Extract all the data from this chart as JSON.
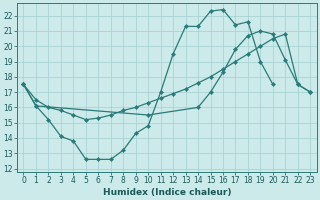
{
  "xlabel": "Humidex (Indice chaleur)",
  "bg_color": "#cceaea",
  "grid_color": "#aad4d4",
  "line_color": "#2a7a7a",
  "ylim": [
    11.8,
    22.8
  ],
  "xlim": [
    -0.5,
    23.5
  ],
  "yticks": [
    12,
    13,
    14,
    15,
    16,
    17,
    18,
    19,
    20,
    21,
    22
  ],
  "xticks": [
    0,
    1,
    2,
    3,
    4,
    5,
    6,
    7,
    8,
    9,
    10,
    11,
    12,
    13,
    14,
    15,
    16,
    17,
    18,
    19,
    20,
    21,
    22,
    23
  ],
  "line1_x": [
    0,
    1,
    2,
    3,
    4,
    5,
    6,
    7,
    8,
    9,
    10,
    11,
    12,
    13,
    14,
    15,
    16,
    17,
    18,
    19,
    20
  ],
  "line1_y": [
    17.5,
    16.1,
    15.2,
    14.1,
    13.8,
    12.6,
    12.6,
    12.6,
    13.2,
    14.3,
    14.8,
    17.0,
    19.5,
    21.3,
    21.3,
    22.3,
    22.4,
    21.4,
    21.6,
    19.0,
    17.5
  ],
  "line2_x": [
    0,
    1,
    2,
    3,
    4,
    5,
    6,
    7,
    8,
    9,
    10,
    11,
    12,
    13,
    14,
    15,
    16,
    17,
    18,
    19,
    20,
    21,
    22,
    23
  ],
  "line2_y": [
    17.5,
    16.5,
    16.0,
    15.8,
    15.5,
    15.2,
    15.3,
    15.5,
    15.8,
    16.0,
    16.3,
    16.6,
    16.9,
    17.2,
    17.6,
    18.0,
    18.5,
    19.0,
    19.5,
    20.0,
    20.5,
    20.8,
    17.5,
    17.0
  ],
  "line3_x": [
    0,
    1,
    10,
    14,
    15,
    16,
    17,
    18,
    19,
    20,
    21,
    22,
    23
  ],
  "line3_y": [
    17.5,
    16.1,
    15.5,
    16.0,
    17.0,
    18.3,
    19.8,
    20.7,
    21.0,
    20.8,
    19.1,
    17.5,
    17.0
  ]
}
